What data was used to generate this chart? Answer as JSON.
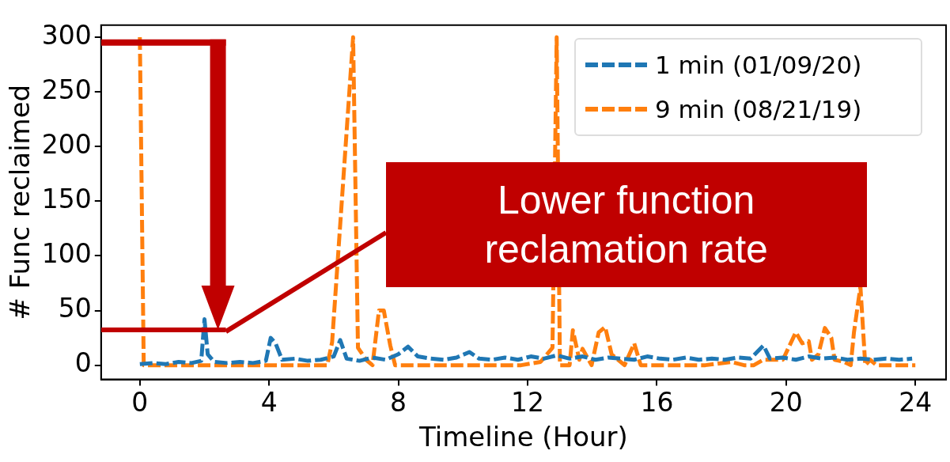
{
  "chart_data": {
    "type": "line",
    "xlabel": "Timeline (Hour)",
    "ylabel": "# Func reclaimed",
    "xlim": [
      -1.2,
      24.95
    ],
    "xticks": [
      0,
      4,
      8,
      12,
      16,
      20,
      24
    ],
    "ylim": [
      -13,
      311
    ],
    "yticks": [
      0,
      50,
      100,
      150,
      200,
      250,
      300
    ],
    "grid": false,
    "legend": "top right",
    "line_style": "dashed",
    "marker": "none",
    "annotations": [
      "Lower function reclamation rate"
    ],
    "series": [
      {
        "name": "1 min (01/09/20)",
        "color": "#1f77b4",
        "x": [
          0,
          0.4,
          0.8,
          1.2,
          1.6,
          1.9,
          2.0,
          2.1,
          2.3,
          2.7,
          3.1,
          3.5,
          3.9,
          4.05,
          4.2,
          4.4,
          4.8,
          5.2,
          5.6,
          6.0,
          6.2,
          6.4,
          6.8,
          7.2,
          7.6,
          8.0,
          8.3,
          8.6,
          9.0,
          9.4,
          9.8,
          10.2,
          10.5,
          10.9,
          11.3,
          11.7,
          12.1,
          12.5,
          12.9,
          13.3,
          13.7,
          14.1,
          14.5,
          14.9,
          15.3,
          15.7,
          16.1,
          16.5,
          16.9,
          17.3,
          17.7,
          18.1,
          18.5,
          18.9,
          19.3,
          19.5,
          19.9,
          20.3,
          20.7,
          21.1,
          21.5,
          21.9,
          22.3,
          22.7,
          23.1,
          23.5,
          23.9
        ],
        "values": [
          1,
          2,
          1,
          3,
          2,
          4,
          42,
          10,
          3,
          2,
          3,
          2,
          4,
          25,
          20,
          5,
          6,
          4,
          5,
          8,
          23,
          6,
          4,
          7,
          5,
          10,
          17,
          8,
          6,
          5,
          7,
          12,
          6,
          5,
          7,
          5,
          8,
          6,
          9,
          6,
          8,
          5,
          7,
          6,
          5,
          8,
          6,
          5,
          7,
          5,
          6,
          5,
          7,
          6,
          18,
          6,
          7,
          5,
          8,
          6,
          7,
          5,
          6,
          5,
          6,
          5,
          6
        ]
      },
      {
        "name": "9 min (08/21/19)",
        "color": "#ff7f0e",
        "x": [
          0,
          0.12,
          1,
          2,
          3,
          4,
          5,
          5.8,
          5.95,
          6.6,
          6.75,
          7.0,
          7.2,
          7.4,
          7.55,
          7.75,
          7.9,
          9,
          10,
          11,
          11.8,
          12.4,
          12.77,
          12.9,
          13.0,
          13.3,
          13.4,
          13.6,
          13.7,
          13.98,
          14.2,
          14.4,
          14.6,
          14.8,
          15.0,
          15.3,
          15.5,
          16.5,
          17.5,
          18.3,
          18.7,
          19.0,
          19.3,
          19.9,
          20.3,
          20.5,
          20.7,
          20.8,
          21.0,
          21.2,
          21.4,
          21.5,
          21.8,
          22.0,
          22.1,
          22.3,
          22.45,
          22.6,
          22.8,
          23.4,
          24.0
        ],
        "values": [
          300,
          0,
          0,
          0,
          0,
          0,
          0,
          0,
          21,
          300,
          16,
          5,
          0,
          50,
          50,
          18,
          0,
          0,
          0,
          0,
          0,
          3,
          16,
          300,
          0,
          0,
          32,
          5,
          15,
          0,
          30,
          35,
          10,
          5,
          0,
          20,
          0,
          0,
          0,
          3,
          0,
          0,
          5,
          5,
          30,
          20,
          22,
          5,
          10,
          34,
          25,
          5,
          3,
          0,
          30,
          72,
          0,
          5,
          0,
          0,
          0
        ]
      }
    ]
  }
}
